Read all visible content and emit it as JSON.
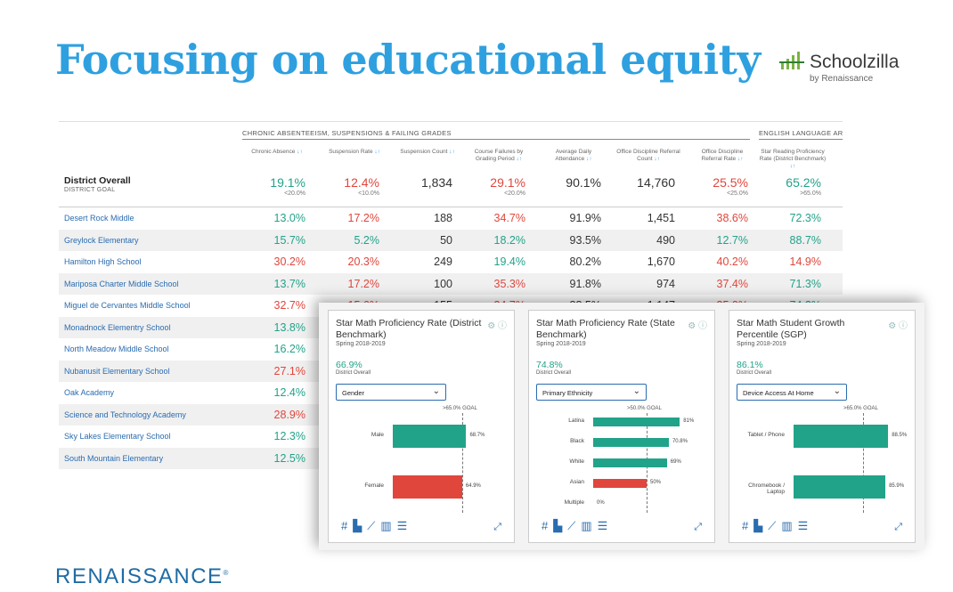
{
  "slide": {
    "title": "Focusing on educational equity"
  },
  "logo": {
    "name": "Schoolzilla",
    "sub": "by Renaissance"
  },
  "footer": {
    "brand": "RENAISSANCE",
    "mark": "®"
  },
  "table": {
    "groups": [
      {
        "label": "CHRONIC ABSENTEEISM, SUSPENSIONS & FAILING GRADES"
      },
      {
        "label": "ENGLISH LANGUAGE ARTS"
      }
    ],
    "columns": [
      {
        "label": "Chronic Absence"
      },
      {
        "label": "Suspension Rate"
      },
      {
        "label": "Suspension Count"
      },
      {
        "label": "Course Failures by Grading Period"
      },
      {
        "label": "Average Daily Attendance"
      },
      {
        "label": "Office Discipline Referral Count"
      },
      {
        "label": "Office Discipline Referral Rate"
      },
      {
        "label": "Star Reading Proficiency Rate (District Benchmark)"
      }
    ],
    "overall": {
      "label": "District Overall",
      "sublabel": "DISTRICT GOAL",
      "values": [
        "19.1%",
        "12.4%",
        "1,834",
        "29.1%",
        "90.1%",
        "14,760",
        "25.5%",
        "65.2%"
      ],
      "goals": [
        "<20.0%",
        "<10.0%",
        "",
        "<20.0%",
        "",
        "",
        "<25.0%",
        ">65.0%"
      ]
    },
    "rows": [
      {
        "school": "Desert Rock Middle",
        "values": [
          "13.0%",
          "17.2%",
          "188",
          "34.7%",
          "91.9%",
          "1,451",
          "38.6%",
          "72.3%"
        ]
      },
      {
        "school": "Greylock Elementary",
        "values": [
          "15.7%",
          "5.2%",
          "50",
          "18.2%",
          "93.5%",
          "490",
          "12.7%",
          "88.7%"
        ]
      },
      {
        "school": "Hamilton High School",
        "values": [
          "30.2%",
          "20.3%",
          "249",
          "19.4%",
          "80.2%",
          "1,670",
          "40.2%",
          "14.9%"
        ]
      },
      {
        "school": "Mariposa Charter Middle School",
        "values": [
          "13.7%",
          "17.2%",
          "100",
          "35.3%",
          "91.8%",
          "974",
          "37.4%",
          "71.3%"
        ]
      },
      {
        "school": "Miguel de Cervantes Middle School",
        "values": [
          "32.7%",
          "15.6%",
          "155",
          "34.7%",
          "88.5%",
          "1,147",
          "35.0%",
          "74.2%"
        ]
      },
      {
        "school": "Monadnock Elementry School",
        "values": [
          "13.8%"
        ]
      },
      {
        "school": "North Meadow Middle School",
        "values": [
          "16.2%"
        ]
      },
      {
        "school": "Nubanusit Elementary School",
        "values": [
          "27.1%"
        ]
      },
      {
        "school": "Oak Academy",
        "values": [
          "12.4%"
        ]
      },
      {
        "school": "Science and Technology Academy",
        "values": [
          "28.9%"
        ]
      },
      {
        "school": "Sky Lakes Elementary School",
        "values": [
          "12.3%"
        ]
      },
      {
        "school": "South Mountain Elementary",
        "values": [
          "12.5%"
        ]
      }
    ]
  },
  "cards": [
    {
      "title": "Star Math Proficiency Rate (District Benchmark)",
      "date": "Spring 2018-2019",
      "value": "66.9%",
      "value_sub": "District Overall",
      "dropdown": "Gender",
      "goal": ">65.0% GOAL",
      "bars": [
        {
          "label": "Male",
          "value": 68.7,
          "display": "68.7%",
          "status": "good"
        },
        {
          "label": "Female",
          "value": 64.9,
          "display": "64.9%",
          "status": "bad"
        }
      ]
    },
    {
      "title": "Star Math Proficiency Rate (State Benchmark)",
      "date": "Spring 2018-2019",
      "value": "74.8%",
      "value_sub": "District Overall",
      "dropdown": "Primary Ethnicity",
      "goal": ">50.0% GOAL",
      "bars": [
        {
          "label": "Latina",
          "value": 81,
          "display": "81%",
          "status": "good"
        },
        {
          "label": "Black",
          "value": 70.8,
          "display": "70.8%",
          "status": "good"
        },
        {
          "label": "White",
          "value": 69,
          "display": "69%",
          "status": "good"
        },
        {
          "label": "Asian",
          "value": 50,
          "display": "50%",
          "status": "bad"
        },
        {
          "label": "Multiple",
          "value": 0,
          "display": "0%",
          "status": "good"
        }
      ]
    },
    {
      "title": "Star Math Student Growth Percentile (SGP)",
      "date": "Spring 2018-2019",
      "value": "86.1%",
      "value_sub": "District Overall",
      "dropdown": "Device Access At Home",
      "goal": ">65.0% GOAL",
      "bars": [
        {
          "label": "Tablet / Phone",
          "value": 88.5,
          "display": "88.5%",
          "status": "good"
        },
        {
          "label": "Chromebook / Laptop",
          "value": 85.9,
          "display": "85.9%",
          "status": "good"
        }
      ]
    }
  ],
  "colors": {
    "good": "#21a38a",
    "bad": "#e0463c",
    "accent": "#2ea0e0",
    "link": "#2a6cb0"
  },
  "icons": [
    "gear-icon",
    "info-icon",
    "table-icon",
    "bar-chart-icon",
    "line-chart-icon",
    "column-icon",
    "list-icon",
    "expand-icon",
    "chevron-down-icon"
  ]
}
